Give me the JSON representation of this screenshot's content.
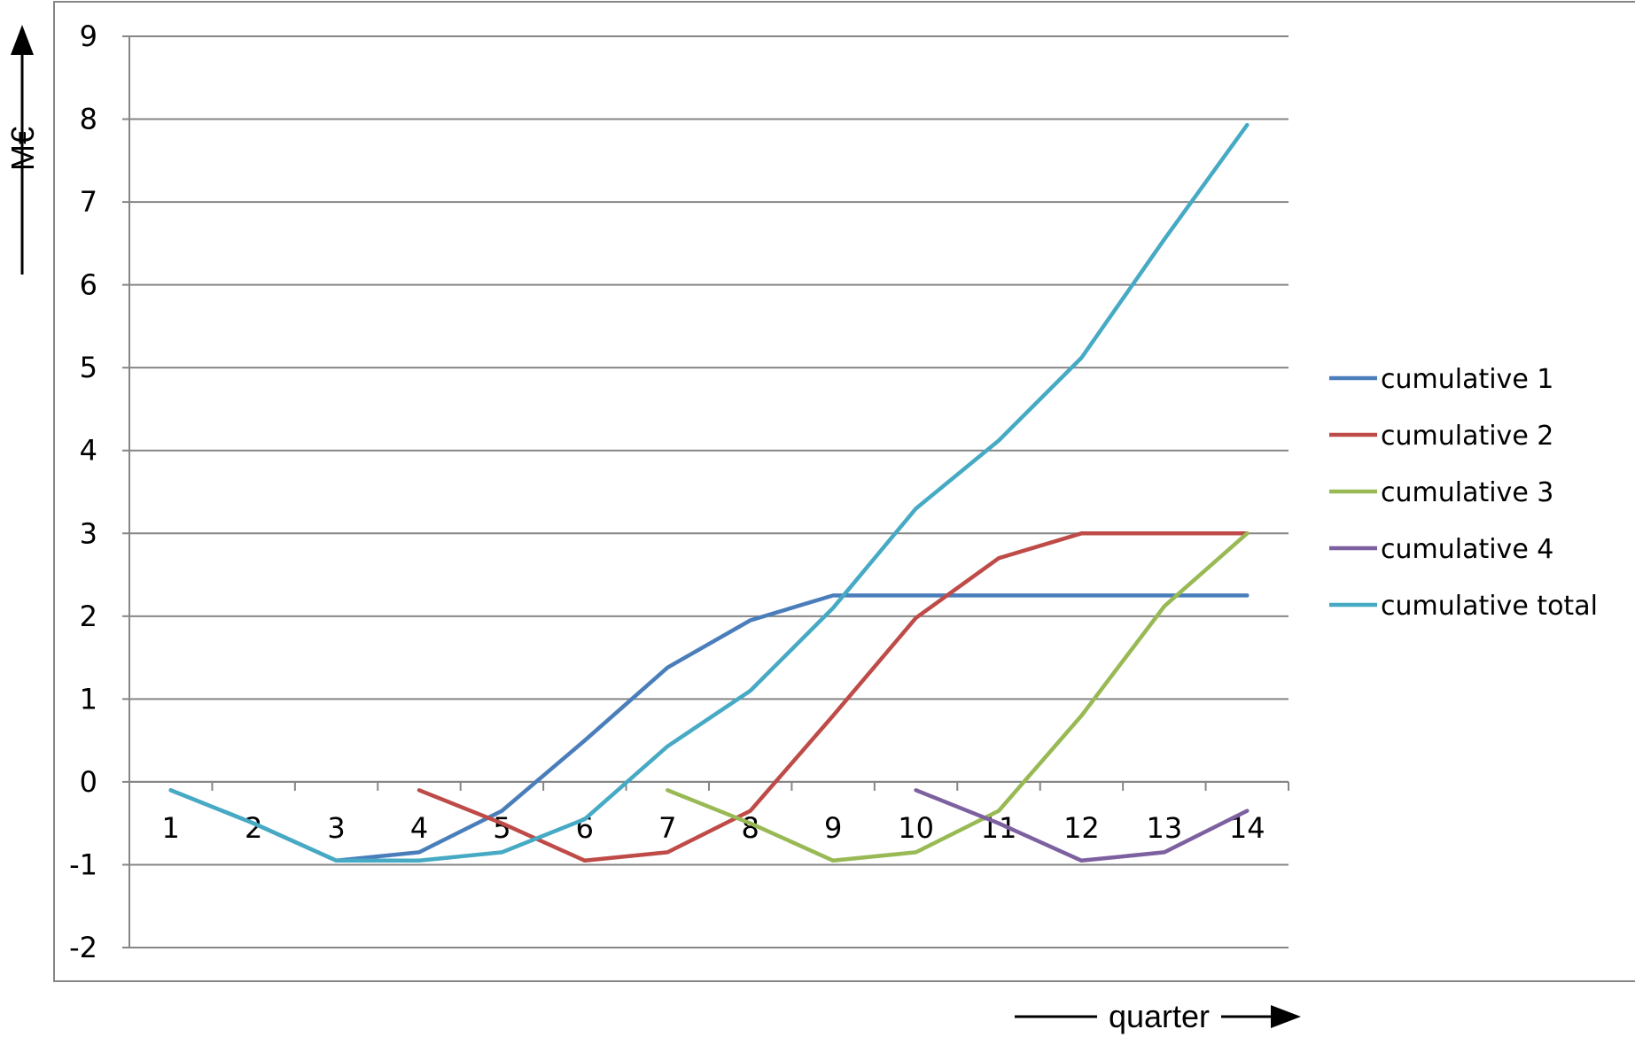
{
  "chart_data": {
    "type": "line",
    "title": "",
    "xlabel": "quarter",
    "ylabel": "M€",
    "x": [
      1,
      2,
      3,
      4,
      5,
      6,
      7,
      8,
      9,
      10,
      11,
      12,
      13,
      14
    ],
    "ylim": [
      -2,
      9
    ],
    "yticks": [
      -2,
      -1,
      0,
      1,
      2,
      3,
      4,
      5,
      6,
      7,
      8,
      9
    ],
    "grid": true,
    "legend_position": "right",
    "series": [
      {
        "name": "cumulative 1",
        "color": "#4a7ebb",
        "values": [
          -0.1,
          -0.5,
          -0.95,
          -0.85,
          -0.35,
          0.5,
          1.38,
          1.95,
          2.25,
          2.25,
          2.25,
          2.25,
          2.25,
          2.25
        ]
      },
      {
        "name": "cumulative 2",
        "color": "#be4b48",
        "values": [
          null,
          null,
          null,
          -0.1,
          -0.5,
          -0.95,
          -0.85,
          -0.35,
          0.8,
          1.98,
          2.7,
          3.0,
          3.0,
          3.0
        ]
      },
      {
        "name": "cumulative 3",
        "color": "#98b954",
        "values": [
          null,
          null,
          null,
          null,
          null,
          null,
          -0.1,
          -0.5,
          -0.95,
          -0.85,
          -0.35,
          0.8,
          2.12,
          3.0
        ]
      },
      {
        "name": "cumulative 4",
        "color": "#7d60a0",
        "values": [
          null,
          null,
          null,
          null,
          null,
          null,
          null,
          null,
          null,
          -0.1,
          -0.5,
          -0.95,
          -0.85,
          -0.35
        ]
      },
      {
        "name": "cumulative total",
        "color": "#46aac5",
        "values": [
          -0.1,
          -0.5,
          -0.95,
          -0.95,
          -0.85,
          -0.45,
          0.43,
          1.1,
          2.1,
          3.3,
          4.12,
          5.12,
          6.55,
          7.93
        ]
      }
    ]
  }
}
